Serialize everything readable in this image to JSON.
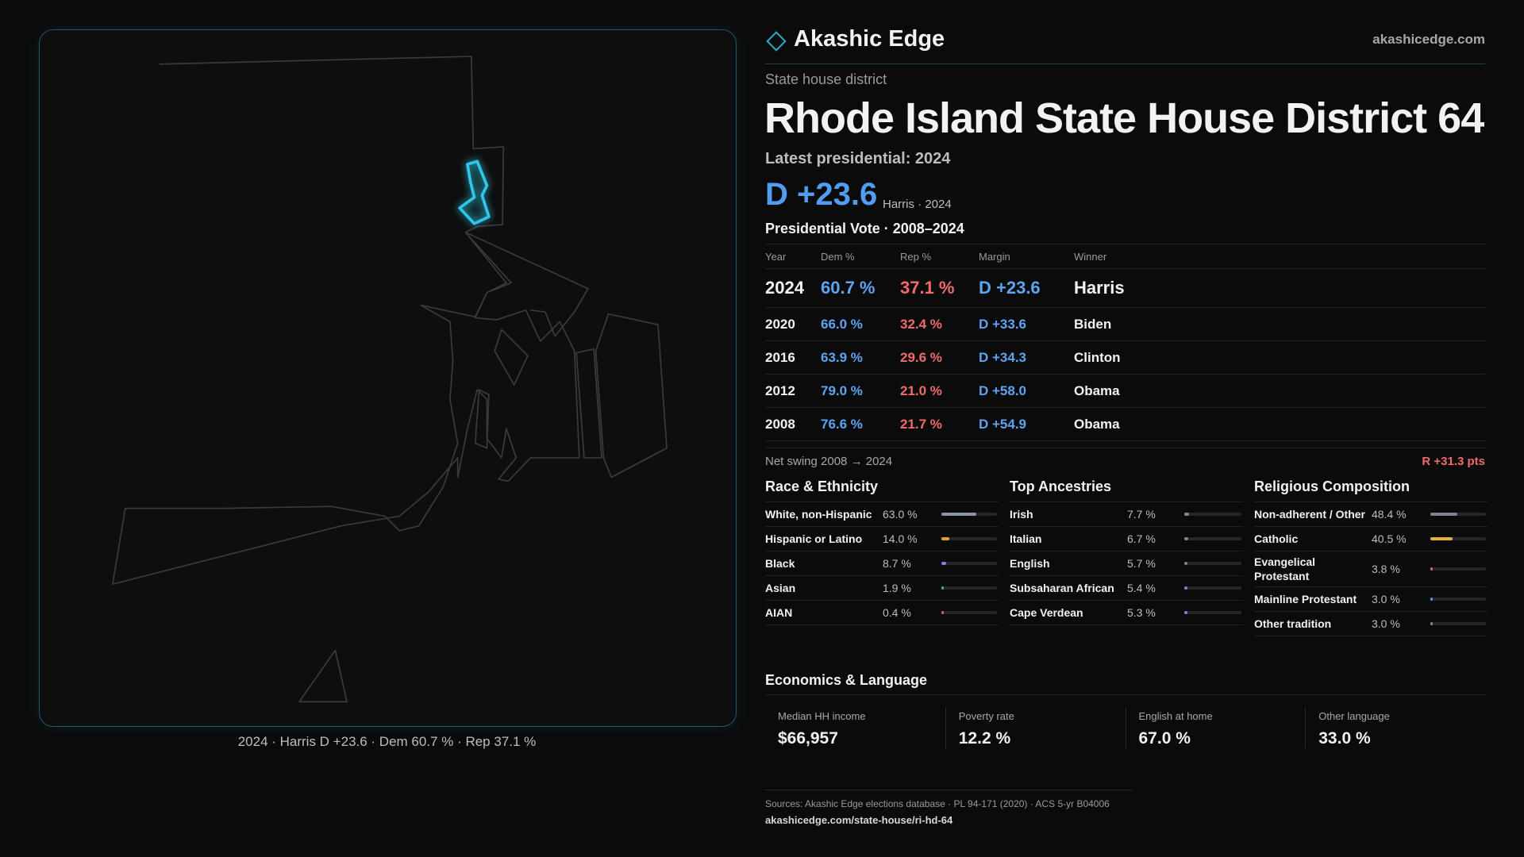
{
  "brand": {
    "name": "Akashic Edge",
    "site": "akashicedge.com"
  },
  "map_caption": "2024 · Harris D +23.6 · Dem 60.7 % · Rep 37.1 %",
  "header": {
    "kicker": "State house district",
    "title": "Rhode Island State House District 64",
    "latest_label": "Latest presidential: 2024",
    "margin": "D +23.6",
    "margin_note": "Harris · 2024"
  },
  "vote_table": {
    "title": "Presidential Vote · 2008–2024",
    "columns": [
      "Year",
      "Dem %",
      "Rep %",
      "Margin",
      "Winner"
    ],
    "rows": [
      [
        "2024",
        "60.7 %",
        "37.1 %",
        "D +23.6",
        "Harris"
      ],
      [
        "2020",
        "66.0 %",
        "32.4 %",
        "D +33.6",
        "Biden"
      ],
      [
        "2016",
        "63.9 %",
        "29.6 %",
        "D +34.3",
        "Clinton"
      ],
      [
        "2012",
        "79.0 %",
        "21.0 %",
        "D +58.0",
        "Obama"
      ],
      [
        "2008",
        "76.6 %",
        "21.7 %",
        "D +54.9",
        "Obama"
      ]
    ]
  },
  "swing": {
    "label": "Net swing 2008 → 2024",
    "value": "R +31.3 pts"
  },
  "race": {
    "title": "Race & Ethnicity",
    "rows": [
      {
        "label": "White, non-Hispanic",
        "share": {
          "value": 63.0,
          "label": "63.0 %"
        },
        "color": "#8d96a6"
      },
      {
        "label": "Hispanic or Latino",
        "share": {
          "value": 14.0,
          "label": "14.0 %"
        },
        "color": "#e0a030"
      },
      {
        "label": "Black",
        "share": {
          "value": 8.7,
          "label": "8.7 %"
        },
        "color": "#8b7be0"
      },
      {
        "label": "Asian",
        "share": {
          "value": 1.9,
          "label": "1.9 %"
        },
        "color": "#3fb07e"
      },
      {
        "label": "AIAN",
        "share": {
          "value": 0.4,
          "label": "0.4 %"
        },
        "color": "#b86a6a"
      }
    ]
  },
  "ancestries": {
    "title": "Top Ancestries",
    "rows": [
      {
        "label": "Irish",
        "share": {
          "value": 7.7,
          "label": "7.7 %"
        },
        "color": "#7c8494"
      },
      {
        "label": "Italian",
        "share": {
          "value": 6.7,
          "label": "6.7 %"
        },
        "color": "#7c8494"
      },
      {
        "label": "English",
        "share": {
          "value": 5.7,
          "label": "5.7 %"
        },
        "color": "#7c8494"
      },
      {
        "label": "Subsaharan African",
        "share": {
          "value": 5.4,
          "label": "5.4 %"
        },
        "color": "#8b7be0"
      },
      {
        "label": "Cape Verdean",
        "share": {
          "value": 5.3,
          "label": "5.3 %"
        },
        "color": "#8b7be0"
      }
    ]
  },
  "religion": {
    "title": "Religious Composition",
    "rows": [
      {
        "label": "Non-adherent / Other",
        "share": {
          "value": 48.4,
          "label": "48.4 %"
        },
        "color": "#7c8494"
      },
      {
        "label": "Catholic",
        "share": {
          "value": 40.5,
          "label": "40.5 %"
        },
        "color": "#e8b030"
      },
      {
        "label": "Evangelical Protestant",
        "share": {
          "value": 3.8,
          "label": "3.8 %"
        },
        "color": "#e06060"
      },
      {
        "label": "Mainline Protestant",
        "share": {
          "value": 3.0,
          "label": "3.0 %"
        },
        "color": "#5a90e0"
      },
      {
        "label": "Other tradition",
        "share": {
          "value": 3.0,
          "label": "3.0 %"
        },
        "color": "#7c8494"
      }
    ]
  },
  "economics": {
    "title": "Economics & Language",
    "cards": [
      {
        "label": "Median HH income",
        "value": "$66,957"
      },
      {
        "label": "Poverty rate",
        "value": "12.2 %"
      },
      {
        "label": "English at home",
        "value": "67.0 %"
      },
      {
        "label": "Other language",
        "value": "33.0 %"
      }
    ]
  },
  "footer": {
    "sources": "Sources: Akashic Edge elections database · PL 94-171 (2020) · ACS 5-yr B04006",
    "url": "akashicedge.com/state-house/ri-hd-64"
  }
}
